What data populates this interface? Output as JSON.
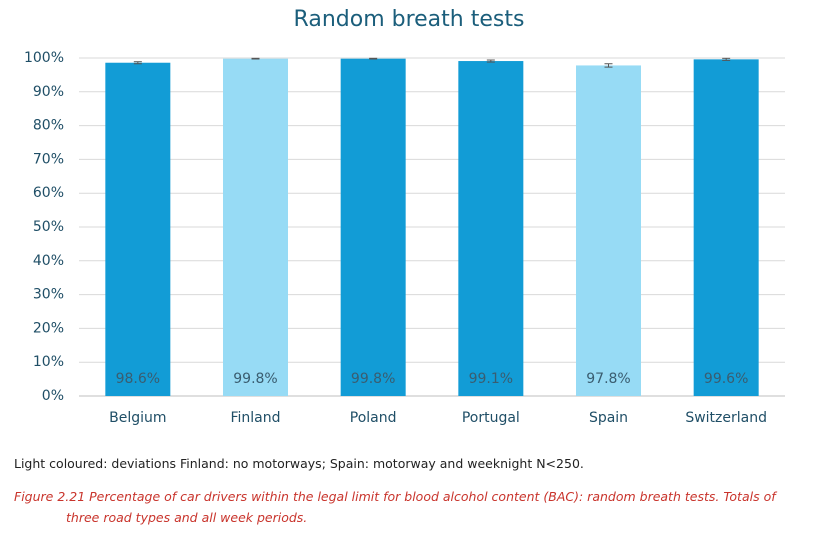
{
  "chart_data": {
    "type": "bar",
    "title": "Random breath tests",
    "categories": [
      "Belgium",
      "Finland",
      "Poland",
      "Portugal",
      "Spain",
      "Switzerland"
    ],
    "values": [
      98.6,
      99.8,
      99.8,
      99.1,
      97.8,
      99.6
    ],
    "value_labels": [
      "98.6%",
      "99.8%",
      "99.8%",
      "99.1%",
      "97.8%",
      "99.6%"
    ],
    "errors": [
      0.3,
      0.1,
      0.1,
      0.3,
      0.5,
      0.3
    ],
    "colors": [
      "#129cd6",
      "#97dbf5",
      "#129cd6",
      "#129cd6",
      "#97dbf5",
      "#129cd6"
    ],
    "ylim": [
      0,
      100
    ],
    "yticks": [
      {
        "value": 0,
        "label": "0%"
      },
      {
        "value": 10,
        "label": "10%"
      },
      {
        "value": 20,
        "label": "20%"
      },
      {
        "value": 30,
        "label": "30%"
      },
      {
        "value": 40,
        "label": "40%"
      },
      {
        "value": 50,
        "label": "50%"
      },
      {
        "value": 60,
        "label": "60%"
      },
      {
        "value": 70,
        "label": "70%"
      },
      {
        "value": 80,
        "label": "80%"
      },
      {
        "value": 90,
        "label": "90%"
      },
      {
        "value": 100,
        "label": "100%"
      }
    ],
    "grid": true,
    "note": "Light coloured: deviations Finland: no motorways; Spain: motorway and weeknight N<250.",
    "caption": "Figure 2.21 Percentage of car drivers within the legal limit for blood alcohol content (BAC): random breath tests. Totals of three road types and all week periods."
  }
}
